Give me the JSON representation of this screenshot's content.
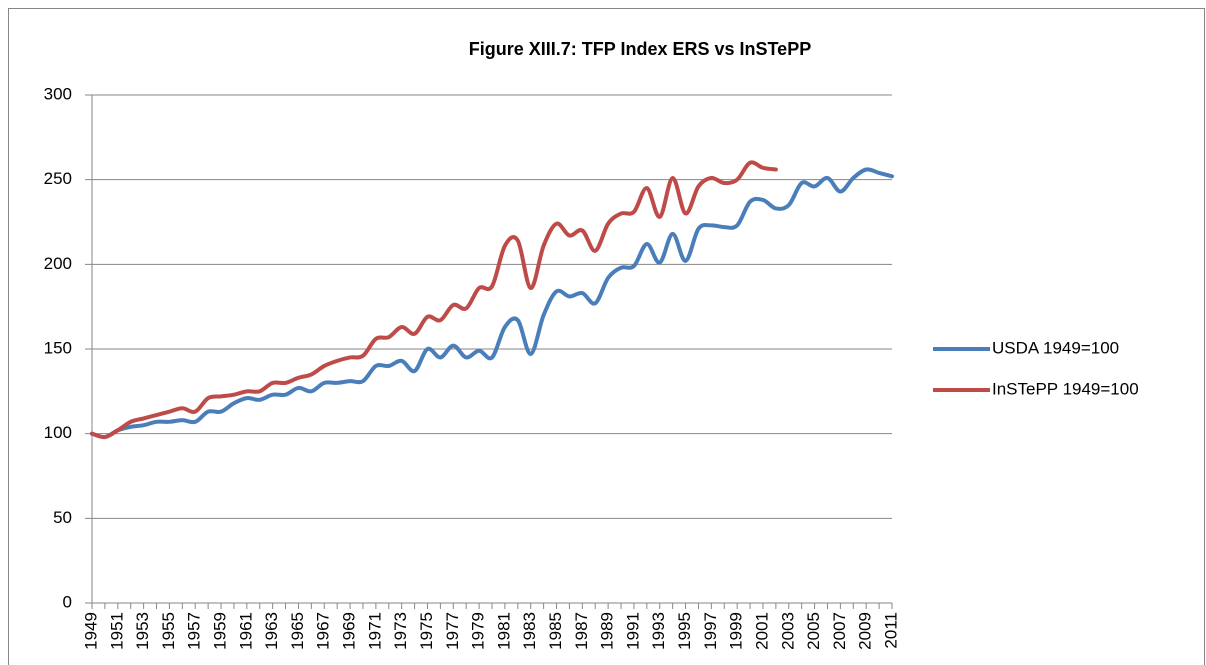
{
  "chart_data": {
    "type": "line",
    "title": "Figure XIII.7: TFP Index ERS vs InSTePP",
    "categories": [
      "1949",
      null,
      "1951",
      null,
      "1953",
      null,
      "1955",
      null,
      "1957",
      null,
      "1959",
      null,
      "1961",
      null,
      "1963",
      null,
      "1965",
      null,
      "1967",
      null,
      "1969",
      null,
      "1971",
      null,
      "1973",
      null,
      "1975",
      null,
      "1977",
      null,
      "1979",
      null,
      "1981",
      null,
      "1983",
      null,
      "1985",
      null,
      "1987",
      null,
      "1989",
      null,
      "1991",
      null,
      "1993",
      null,
      "1995",
      null,
      "1997",
      null,
      "1999",
      null,
      "2001",
      null,
      "2003",
      null,
      "2005",
      null,
      "2007",
      null,
      "2009",
      null,
      "2011"
    ],
    "series": [
      {
        "name": "USDA 1949=100",
        "color": "#4a7ebb",
        "values": [
          100,
          98,
          102,
          104,
          105,
          107,
          107,
          108,
          107,
          113,
          113,
          118,
          121,
          120,
          123,
          123,
          127,
          125,
          130,
          130,
          131,
          131,
          140,
          140,
          143,
          137,
          150,
          145,
          152,
          145,
          149,
          145,
          163,
          167,
          147,
          170,
          184,
          181,
          183,
          177,
          192,
          198,
          199,
          212,
          201,
          218,
          202,
          221,
          223,
          222,
          223,
          237,
          238,
          233,
          235,
          248,
          246,
          251,
          243,
          251,
          256,
          254,
          252
        ]
      },
      {
        "name": "InSTePP 1949=100",
        "color": "#be4b48",
        "values": [
          100,
          98,
          102,
          107,
          109,
          111,
          113,
          115,
          113,
          121,
          122,
          123,
          125,
          125,
          130,
          130,
          133,
          135,
          140,
          143,
          145,
          146,
          156,
          157,
          163,
          159,
          169,
          167,
          176,
          174,
          186,
          187,
          211,
          214,
          186,
          211,
          224,
          217,
          220,
          208,
          224,
          230,
          231,
          245,
          228,
          251,
          230,
          246,
          251,
          248,
          250,
          260,
          257,
          256,
          null,
          null,
          null,
          null,
          null,
          null,
          null,
          null,
          null
        ]
      }
    ],
    "ylim": [
      0,
      300
    ],
    "yticks": [
      0,
      50,
      100,
      150,
      200,
      250,
      300
    ],
    "grid": true,
    "legend": "right"
  }
}
